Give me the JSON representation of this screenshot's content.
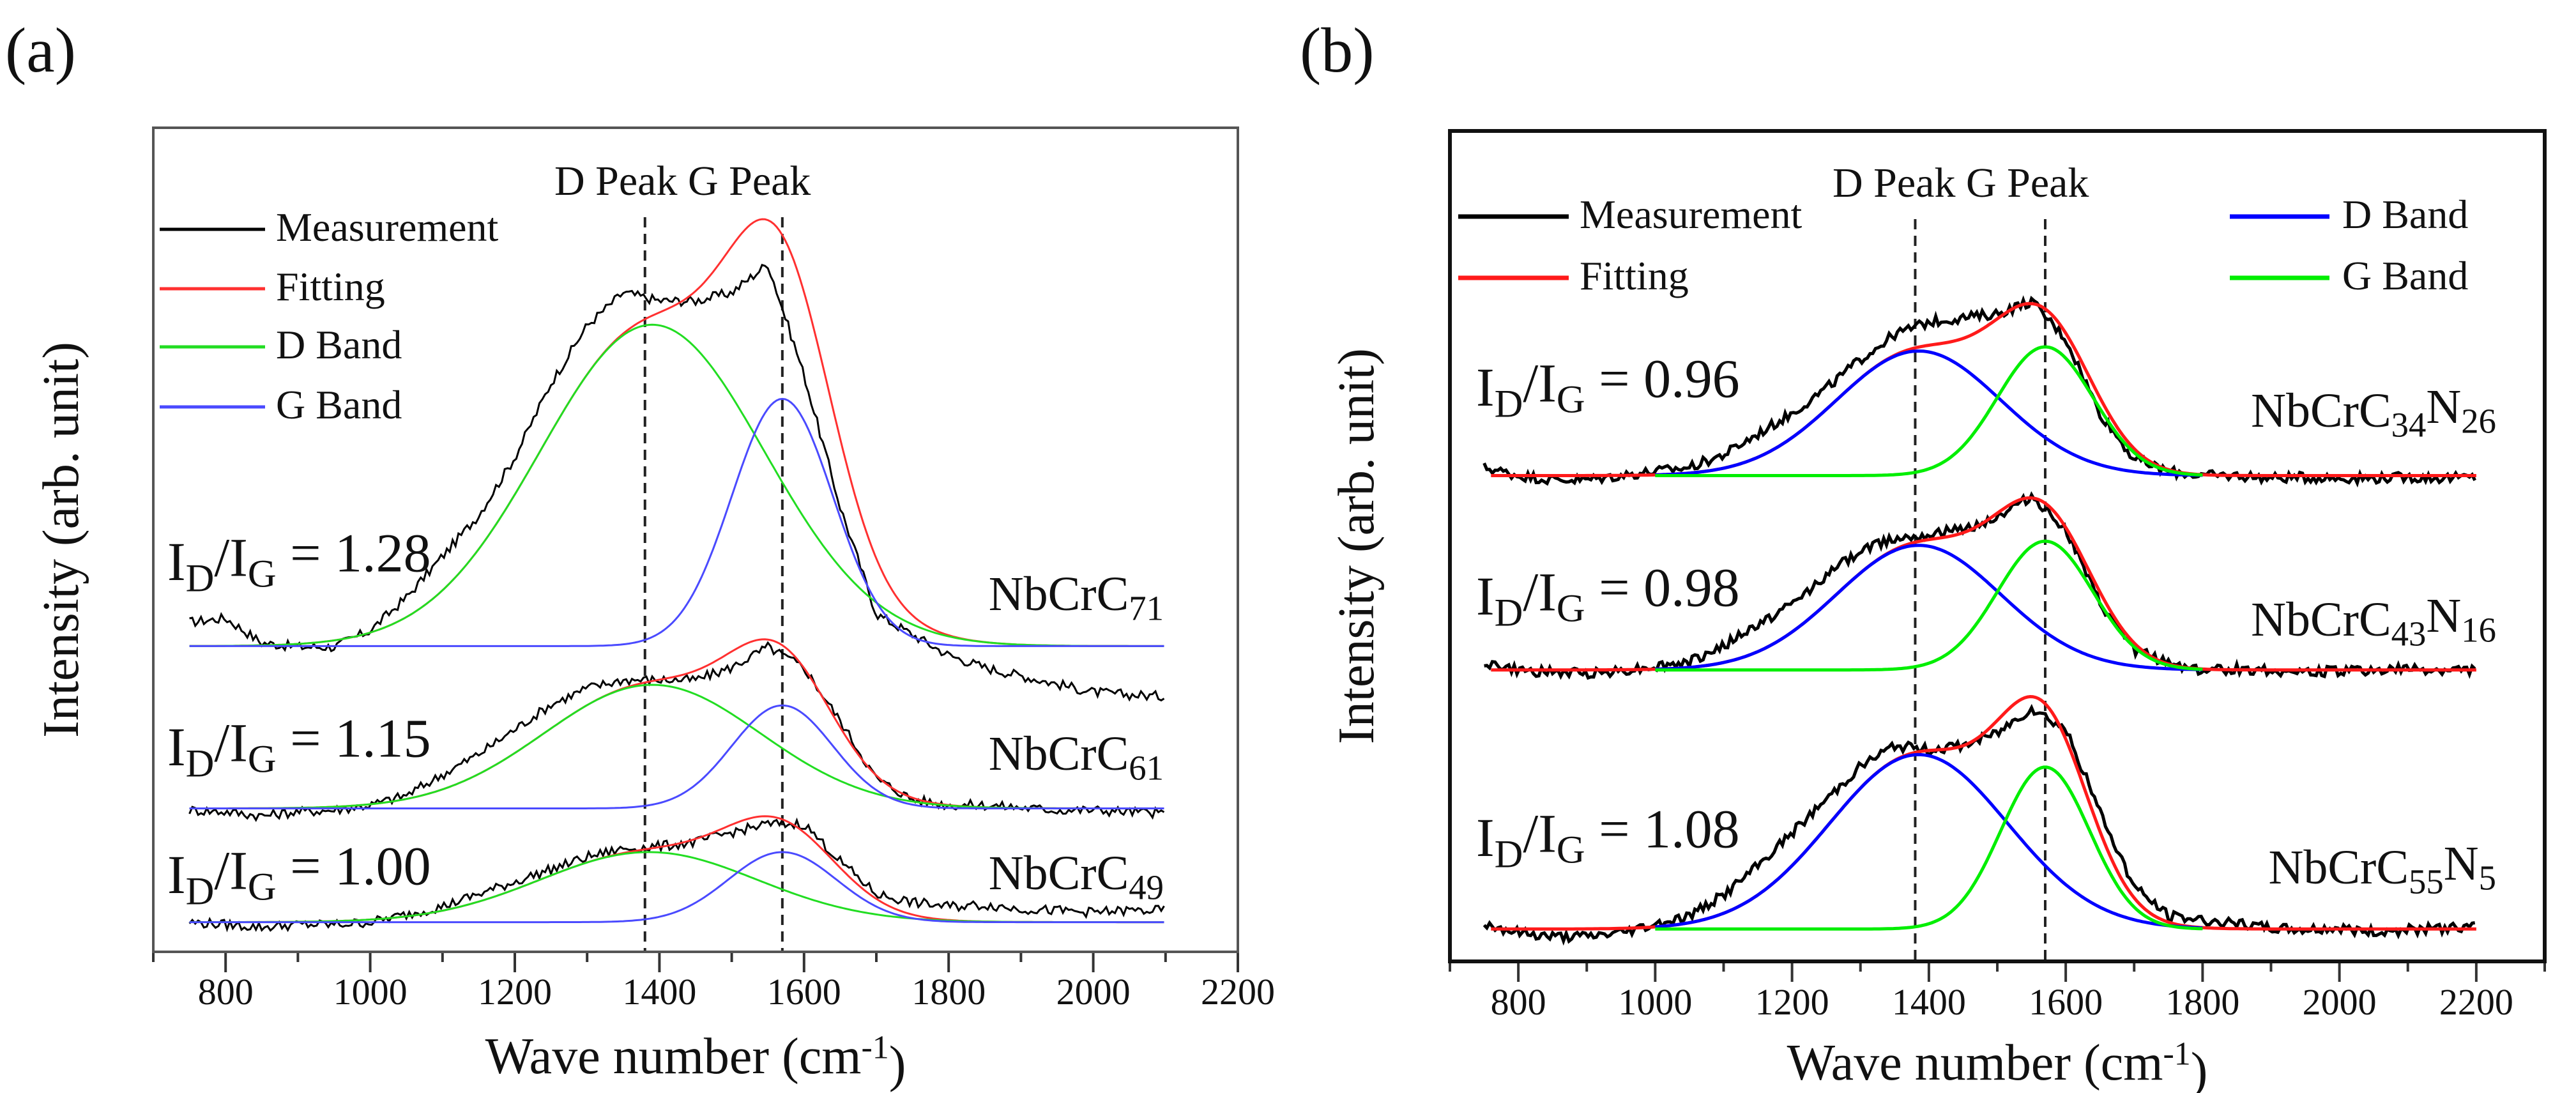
{
  "figure_labels": [
    "(a)",
    "(b)"
  ],
  "chart_data": [
    {
      "panel": "(a)",
      "type": "line",
      "xlabel": {
        "text": "Wave number (cm",
        "sup": "-1",
        "tail": ")"
      },
      "ylabel": "Intensity (arb. unit)",
      "xlim": [
        700,
        2200
      ],
      "ylim": [
        0,
        10
      ],
      "xticks": [
        800,
        1000,
        1200,
        1400,
        1600,
        1800,
        2000,
        2200
      ],
      "minor_step": 100,
      "grid": false,
      "peak_lines": [
        {
          "x": 1380,
          "label": "D Peak"
        },
        {
          "x": 1570,
          "label": "G Peak"
        }
      ],
      "legend": [
        {
          "key": "measurement",
          "label": "Measurement",
          "color": "#000000"
        },
        {
          "key": "fitting",
          "label": "Fitting",
          "color": "#ff3030"
        },
        {
          "key": "d_band",
          "label": "D Band",
          "color": "#22dd22"
        },
        {
          "key": "g_band",
          "label": "G Band",
          "color": "#4a4aff"
        }
      ],
      "legend_placement": "top-left",
      "fit_range": [
        750,
        2100
      ],
      "band_range": [
        750,
        2100
      ],
      "x_measured": [
        750,
        800,
        850,
        900,
        950,
        1000,
        1050,
        1100,
        1150,
        1200,
        1250,
        1300,
        1350,
        1400,
        1450,
        1500,
        1550,
        1600,
        1650,
        1700,
        1750,
        1800,
        1850,
        1900,
        1950,
        2000,
        2050,
        2100
      ],
      "samples": [
        {
          "name": [
            {
              "t": "NbCrC"
            },
            {
              "t": "71",
              "sub": true
            }
          ],
          "ratio_label": [
            {
              "t": "I"
            },
            {
              "t": "D",
              "sub": true
            },
            {
              "t": "/I"
            },
            {
              "t": "G",
              "sub": true
            },
            {
              "t": " = 1.28"
            }
          ],
          "baseline": 3.71,
          "measurement": [
            4.0,
            4.05,
            3.75,
            3.7,
            3.7,
            3.9,
            4.3,
            4.8,
            5.3,
            6.0,
            6.9,
            7.6,
            8.0,
            7.9,
            7.9,
            8.0,
            8.35,
            7.0,
            5.4,
            4.1,
            3.85,
            3.6,
            3.45,
            3.35,
            3.25,
            3.15,
            3.12,
            3.1
          ],
          "d_band": {
            "center": 1390,
            "sigma": 155,
            "amplitude": 3.9
          },
          "g_band": {
            "center": 1570,
            "sigma": 70,
            "amplitude": 3.0
          }
        },
        {
          "name": [
            {
              "t": "NbCrC"
            },
            {
              "t": "61",
              "sub": true
            }
          ],
          "ratio_label": [
            {
              "t": "I"
            },
            {
              "t": "D",
              "sub": true
            },
            {
              "t": "/I"
            },
            {
              "t": "G",
              "sub": true
            },
            {
              "t": " = 1.15"
            }
          ],
          "baseline": 1.74,
          "measurement": [
            1.72,
            1.7,
            1.65,
            1.7,
            1.72,
            1.78,
            1.9,
            2.15,
            2.4,
            2.7,
            3.0,
            3.2,
            3.3,
            3.3,
            3.3,
            3.45,
            3.7,
            3.45,
            2.8,
            2.1,
            1.85,
            1.78,
            1.78,
            1.75,
            1.72,
            1.72,
            1.7,
            1.68
          ],
          "d_band": {
            "center": 1390,
            "sigma": 150,
            "amplitude": 1.5
          },
          "g_band": {
            "center": 1570,
            "sigma": 70,
            "amplitude": 1.25
          }
        },
        {
          "name": [
            {
              "t": "NbCrC"
            },
            {
              "t": "49",
              "sub": true
            }
          ],
          "ratio_label": [
            {
              "t": "I"
            },
            {
              "t": "D",
              "sub": true
            },
            {
              "t": "/I"
            },
            {
              "t": "G",
              "sub": true
            },
            {
              "t": " = 1.00"
            }
          ],
          "baseline": 0.36,
          "measurement": [
            0.36,
            0.33,
            0.3,
            0.33,
            0.33,
            0.36,
            0.45,
            0.55,
            0.7,
            0.85,
            1.0,
            1.15,
            1.25,
            1.28,
            1.33,
            1.45,
            1.55,
            1.55,
            1.1,
            0.7,
            0.6,
            0.55,
            0.57,
            0.52,
            0.5,
            0.48,
            0.5,
            0.5
          ],
          "d_band": {
            "center": 1385,
            "sigma": 150,
            "amplitude": 0.85
          },
          "g_band": {
            "center": 1570,
            "sigma": 75,
            "amplitude": 0.85
          }
        }
      ]
    },
    {
      "panel": "(b)",
      "type": "line",
      "xlabel": {
        "text": "Wave number (cm",
        "sup": "-1",
        "tail": ")"
      },
      "ylabel": "Intensity (arb. unit)",
      "xlim": [
        700,
        2300
      ],
      "ylim": [
        0,
        10
      ],
      "xticks": [
        800,
        1000,
        1200,
        1400,
        1600,
        1800,
        2000,
        2200
      ],
      "minor_step": 100,
      "grid": false,
      "peak_lines": [
        {
          "x": 1380,
          "label": "D Peak"
        },
        {
          "x": 1570,
          "label": "G Peak"
        }
      ],
      "legend": [
        {
          "key": "measurement",
          "label": "Measurement",
          "color": "#000000"
        },
        {
          "key": "fitting",
          "label": "Fitting",
          "color": "#ff1a1a"
        },
        {
          "key": "d_band",
          "label": "D Band",
          "color": "#0000ff"
        },
        {
          "key": "g_band",
          "label": "G Band",
          "color": "#00ee00"
        }
      ],
      "legend_placement": "top-left and top-right",
      "fit_range": [
        760,
        2200
      ],
      "band_range": [
        1000,
        1800
      ],
      "x_measured": [
        750,
        800,
        850,
        900,
        950,
        1000,
        1050,
        1100,
        1150,
        1200,
        1250,
        1300,
        1350,
        1400,
        1450,
        1500,
        1550,
        1600,
        1650,
        1700,
        1750,
        1800,
        1850,
        1900,
        1950,
        2000,
        2050,
        2100,
        2150,
        2200
      ],
      "samples": [
        {
          "name": [
            {
              "t": "NbCrC"
            },
            {
              "t": "34",
              "sub": true
            },
            {
              "t": "N"
            },
            {
              "t": "26",
              "sub": true
            }
          ],
          "ratio_label": [
            {
              "t": "I"
            },
            {
              "t": "D",
              "sub": true
            },
            {
              "t": "/I"
            },
            {
              "t": "G",
              "sub": true
            },
            {
              "t": " = 0.96"
            }
          ],
          "baseline": 5.85,
          "measurement": [
            5.95,
            5.85,
            5.8,
            5.8,
            5.85,
            5.9,
            5.95,
            6.1,
            6.35,
            6.6,
            6.9,
            7.25,
            7.55,
            7.7,
            7.75,
            7.8,
            7.95,
            7.5,
            6.6,
            6.05,
            5.9,
            5.85,
            5.85,
            5.82,
            5.83,
            5.82,
            5.82,
            5.83,
            5.82,
            5.83
          ],
          "d_band": {
            "center": 1385,
            "sigma": 120,
            "amplitude": 1.5
          },
          "g_band": {
            "center": 1570,
            "sigma": 70,
            "amplitude": 1.55
          }
        },
        {
          "name": [
            {
              "t": "NbCrC"
            },
            {
              "t": "43",
              "sub": true
            },
            {
              "t": "N"
            },
            {
              "t": "16",
              "sub": true
            }
          ],
          "ratio_label": [
            {
              "t": "I"
            },
            {
              "t": "D",
              "sub": true
            },
            {
              "t": "/I"
            },
            {
              "t": "G",
              "sub": true
            },
            {
              "t": " = 0.98"
            }
          ],
          "baseline": 3.51,
          "measurement": [
            3.6,
            3.5,
            3.48,
            3.47,
            3.5,
            3.55,
            3.6,
            3.8,
            4.05,
            4.3,
            4.65,
            4.95,
            5.1,
            5.15,
            5.2,
            5.35,
            5.6,
            5.2,
            4.3,
            3.75,
            3.6,
            3.5,
            3.52,
            3.5,
            3.48,
            3.5,
            3.5,
            3.52,
            3.5,
            3.52
          ],
          "d_band": {
            "center": 1385,
            "sigma": 120,
            "amplitude": 1.5
          },
          "g_band": {
            "center": 1570,
            "sigma": 70,
            "amplitude": 1.55
          }
        },
        {
          "name": [
            {
              "t": "NbCrC"
            },
            {
              "t": "55",
              "sub": true
            },
            {
              "t": "N"
            },
            {
              "t": "5",
              "sub": true
            }
          ],
          "ratio_label": [
            {
              "t": "I"
            },
            {
              "t": "D",
              "sub": true
            },
            {
              "t": "/I"
            },
            {
              "t": "G",
              "sub": true
            },
            {
              "t": " = 1.08"
            }
          ],
          "baseline": 0.39,
          "measurement": [
            0.45,
            0.35,
            0.3,
            0.3,
            0.35,
            0.45,
            0.55,
            0.8,
            1.15,
            1.55,
            1.95,
            2.35,
            2.6,
            2.55,
            2.6,
            2.75,
            3.05,
            2.8,
            1.8,
            0.9,
            0.55,
            0.5,
            0.45,
            0.4,
            0.38,
            0.4,
            0.35,
            0.38,
            0.4,
            0.42
          ],
          "d_band": {
            "center": 1385,
            "sigma": 130,
            "amplitude": 2.1
          },
          "g_band": {
            "center": 1570,
            "sigma": 65,
            "amplitude": 1.95
          }
        }
      ]
    }
  ]
}
